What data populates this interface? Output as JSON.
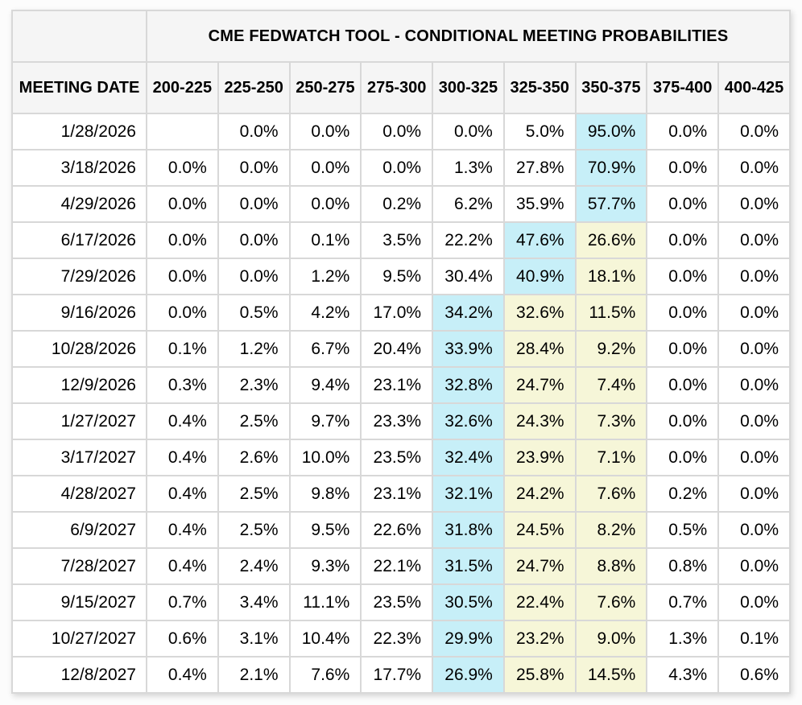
{
  "colors": {
    "highlight_max": "#c7eff8",
    "highlight_secondary": "#f6f6d8",
    "header_bg": "#f5f5f5",
    "grid_line": "#d8d8d8",
    "cell_bg": "#ffffff",
    "text": "#000000"
  },
  "chart_data": {
    "type": "table",
    "title": "CME FEDWATCH TOOL - CONDITIONAL MEETING PROBABILITIES",
    "row_header": "MEETING DATE",
    "columns": [
      "200-225",
      "225-250",
      "250-275",
      "275-300",
      "300-325",
      "325-350",
      "350-375",
      "375-400",
      "400-425"
    ],
    "highlight_legend": {
      "max": "light cyan = highest probability in row",
      "secondary": "pale yellow = secondary highlighted probabilities"
    },
    "rows": [
      {
        "date": "1/28/2026",
        "cells": [
          {
            "v": ""
          },
          {
            "v": "0.0%"
          },
          {
            "v": "0.0%"
          },
          {
            "v": "0.0%"
          },
          {
            "v": "0.0%"
          },
          {
            "v": "5.0%"
          },
          {
            "v": "95.0%",
            "hl": "max"
          },
          {
            "v": "0.0%"
          },
          {
            "v": "0.0%"
          }
        ]
      },
      {
        "date": "3/18/2026",
        "cells": [
          {
            "v": "0.0%"
          },
          {
            "v": "0.0%"
          },
          {
            "v": "0.0%"
          },
          {
            "v": "0.0%"
          },
          {
            "v": "1.3%"
          },
          {
            "v": "27.8%"
          },
          {
            "v": "70.9%",
            "hl": "max"
          },
          {
            "v": "0.0%"
          },
          {
            "v": "0.0%"
          }
        ]
      },
      {
        "date": "4/29/2026",
        "cells": [
          {
            "v": "0.0%"
          },
          {
            "v": "0.0%"
          },
          {
            "v": "0.0%"
          },
          {
            "v": "0.2%"
          },
          {
            "v": "6.2%"
          },
          {
            "v": "35.9%"
          },
          {
            "v": "57.7%",
            "hl": "max"
          },
          {
            "v": "0.0%"
          },
          {
            "v": "0.0%"
          }
        ]
      },
      {
        "date": "6/17/2026",
        "cells": [
          {
            "v": "0.0%"
          },
          {
            "v": "0.0%"
          },
          {
            "v": "0.1%"
          },
          {
            "v": "3.5%"
          },
          {
            "v": "22.2%"
          },
          {
            "v": "47.6%",
            "hl": "max"
          },
          {
            "v": "26.6%",
            "hl": "secondary"
          },
          {
            "v": "0.0%"
          },
          {
            "v": "0.0%"
          }
        ]
      },
      {
        "date": "7/29/2026",
        "cells": [
          {
            "v": "0.0%"
          },
          {
            "v": "0.0%"
          },
          {
            "v": "1.2%"
          },
          {
            "v": "9.5%"
          },
          {
            "v": "30.4%"
          },
          {
            "v": "40.9%",
            "hl": "max"
          },
          {
            "v": "18.1%",
            "hl": "secondary"
          },
          {
            "v": "0.0%"
          },
          {
            "v": "0.0%"
          }
        ]
      },
      {
        "date": "9/16/2026",
        "cells": [
          {
            "v": "0.0%"
          },
          {
            "v": "0.5%"
          },
          {
            "v": "4.2%"
          },
          {
            "v": "17.0%"
          },
          {
            "v": "34.2%",
            "hl": "max"
          },
          {
            "v": "32.6%",
            "hl": "secondary"
          },
          {
            "v": "11.5%",
            "hl": "secondary"
          },
          {
            "v": "0.0%"
          },
          {
            "v": "0.0%"
          }
        ]
      },
      {
        "date": "10/28/2026",
        "cells": [
          {
            "v": "0.1%"
          },
          {
            "v": "1.2%"
          },
          {
            "v": "6.7%"
          },
          {
            "v": "20.4%"
          },
          {
            "v": "33.9%",
            "hl": "max"
          },
          {
            "v": "28.4%",
            "hl": "secondary"
          },
          {
            "v": "9.2%",
            "hl": "secondary"
          },
          {
            "v": "0.0%"
          },
          {
            "v": "0.0%"
          }
        ]
      },
      {
        "date": "12/9/2026",
        "cells": [
          {
            "v": "0.3%"
          },
          {
            "v": "2.3%"
          },
          {
            "v": "9.4%"
          },
          {
            "v": "23.1%"
          },
          {
            "v": "32.8%",
            "hl": "max"
          },
          {
            "v": "24.7%",
            "hl": "secondary"
          },
          {
            "v": "7.4%",
            "hl": "secondary"
          },
          {
            "v": "0.0%"
          },
          {
            "v": "0.0%"
          }
        ]
      },
      {
        "date": "1/27/2027",
        "cells": [
          {
            "v": "0.4%"
          },
          {
            "v": "2.5%"
          },
          {
            "v": "9.7%"
          },
          {
            "v": "23.3%"
          },
          {
            "v": "32.6%",
            "hl": "max"
          },
          {
            "v": "24.3%",
            "hl": "secondary"
          },
          {
            "v": "7.3%",
            "hl": "secondary"
          },
          {
            "v": "0.0%"
          },
          {
            "v": "0.0%"
          }
        ]
      },
      {
        "date": "3/17/2027",
        "cells": [
          {
            "v": "0.4%"
          },
          {
            "v": "2.6%"
          },
          {
            "v": "10.0%"
          },
          {
            "v": "23.5%"
          },
          {
            "v": "32.4%",
            "hl": "max"
          },
          {
            "v": "23.9%",
            "hl": "secondary"
          },
          {
            "v": "7.1%",
            "hl": "secondary"
          },
          {
            "v": "0.0%"
          },
          {
            "v": "0.0%"
          }
        ]
      },
      {
        "date": "4/28/2027",
        "cells": [
          {
            "v": "0.4%"
          },
          {
            "v": "2.5%"
          },
          {
            "v": "9.8%"
          },
          {
            "v": "23.1%"
          },
          {
            "v": "32.1%",
            "hl": "max"
          },
          {
            "v": "24.2%",
            "hl": "secondary"
          },
          {
            "v": "7.6%",
            "hl": "secondary"
          },
          {
            "v": "0.2%"
          },
          {
            "v": "0.0%"
          }
        ]
      },
      {
        "date": "6/9/2027",
        "cells": [
          {
            "v": "0.4%"
          },
          {
            "v": "2.5%"
          },
          {
            "v": "9.5%"
          },
          {
            "v": "22.6%"
          },
          {
            "v": "31.8%",
            "hl": "max"
          },
          {
            "v": "24.5%",
            "hl": "secondary"
          },
          {
            "v": "8.2%",
            "hl": "secondary"
          },
          {
            "v": "0.5%"
          },
          {
            "v": "0.0%"
          }
        ]
      },
      {
        "date": "7/28/2027",
        "cells": [
          {
            "v": "0.4%"
          },
          {
            "v": "2.4%"
          },
          {
            "v": "9.3%"
          },
          {
            "v": "22.1%"
          },
          {
            "v": "31.5%",
            "hl": "max"
          },
          {
            "v": "24.7%",
            "hl": "secondary"
          },
          {
            "v": "8.8%",
            "hl": "secondary"
          },
          {
            "v": "0.8%"
          },
          {
            "v": "0.0%"
          }
        ]
      },
      {
        "date": "9/15/2027",
        "cells": [
          {
            "v": "0.7%"
          },
          {
            "v": "3.4%"
          },
          {
            "v": "11.1%"
          },
          {
            "v": "23.5%"
          },
          {
            "v": "30.5%",
            "hl": "max"
          },
          {
            "v": "22.4%",
            "hl": "secondary"
          },
          {
            "v": "7.6%",
            "hl": "secondary"
          },
          {
            "v": "0.7%"
          },
          {
            "v": "0.0%"
          }
        ]
      },
      {
        "date": "10/27/2027",
        "cells": [
          {
            "v": "0.6%"
          },
          {
            "v": "3.1%"
          },
          {
            "v": "10.4%"
          },
          {
            "v": "22.3%"
          },
          {
            "v": "29.9%",
            "hl": "max"
          },
          {
            "v": "23.2%",
            "hl": "secondary"
          },
          {
            "v": "9.0%",
            "hl": "secondary"
          },
          {
            "v": "1.3%"
          },
          {
            "v": "0.1%"
          }
        ]
      },
      {
        "date": "12/8/2027",
        "cells": [
          {
            "v": "0.4%"
          },
          {
            "v": "2.1%"
          },
          {
            "v": "7.6%"
          },
          {
            "v": "17.7%"
          },
          {
            "v": "26.9%",
            "hl": "max"
          },
          {
            "v": "25.8%",
            "hl": "secondary"
          },
          {
            "v": "14.5%",
            "hl": "secondary"
          },
          {
            "v": "4.3%"
          },
          {
            "v": "0.6%"
          }
        ]
      }
    ]
  }
}
